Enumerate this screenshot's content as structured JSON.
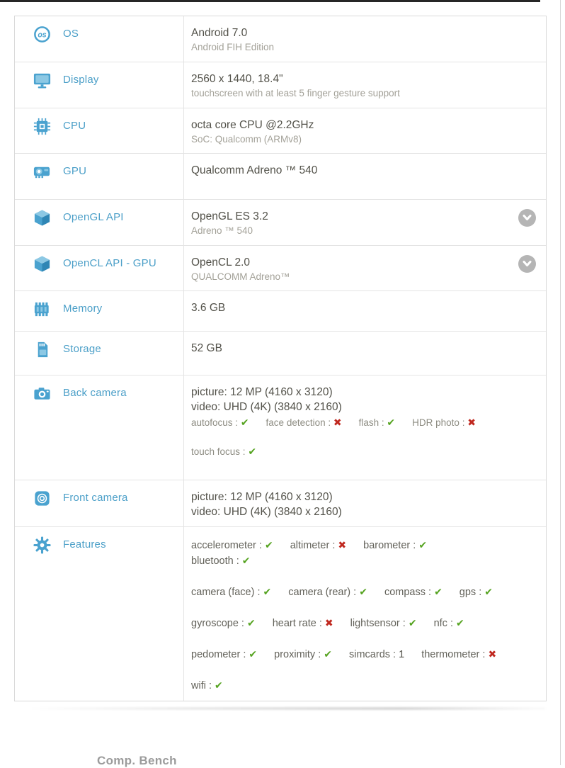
{
  "colors": {
    "label_blue": "#4B9FC8",
    "icon_blue": "#4AA2CF",
    "icon_blue_light": "#8CC8E4",
    "check_green": "#55A320",
    "cross_red": "#C0281F"
  },
  "marks": {
    "check": "✔",
    "cross": "✖"
  },
  "footer": {
    "partial_text": "Comp. Bench"
  },
  "table": {
    "rows": [
      {
        "id": "os",
        "label": "OS",
        "icon": "os-icon",
        "lines": [
          {
            "t": "Android 7.0",
            "s": "primary"
          },
          {
            "t": "Android FIH Edition",
            "s": "secondary"
          }
        ]
      },
      {
        "id": "display",
        "label": "Display",
        "icon": "display-icon",
        "lines": [
          {
            "t": "2560 x 1440, 18.4\"",
            "s": "primary"
          },
          {
            "t": "touchscreen with at least 5 finger gesture support",
            "s": "secondary"
          }
        ]
      },
      {
        "id": "cpu",
        "label": "CPU",
        "icon": "cpu-icon",
        "lines": [
          {
            "t": "octa core CPU @2.2GHz",
            "s": "primary"
          },
          {
            "t": "SoC: Qualcomm (ARMv8)",
            "s": "secondary"
          }
        ]
      },
      {
        "id": "gpu",
        "label": "GPU",
        "icon": "gpu-icon",
        "lines": [
          {
            "t": "Qualcomm Adreno ™ 540",
            "s": "primary"
          }
        ]
      },
      {
        "id": "opengl",
        "label": "OpenGL API",
        "icon": "opengl-cube-icon",
        "chevron": true,
        "lines": [
          {
            "t": "OpenGL ES 3.2",
            "s": "primary"
          },
          {
            "t": "Adreno ™ 540",
            "s": "secondary"
          }
        ]
      },
      {
        "id": "opencl",
        "label": "OpenCL API - GPU",
        "icon": "opencl-cube-icon",
        "chevron": true,
        "lines": [
          {
            "t": "OpenCL 2.0",
            "s": "primary"
          },
          {
            "t": "QUALCOMM Adreno™",
            "s": "secondary"
          }
        ]
      },
      {
        "id": "memory",
        "label": "Memory",
        "icon": "memory-icon",
        "lines": [
          {
            "t": "3.6 GB",
            "s": "primary"
          }
        ]
      },
      {
        "id": "storage",
        "label": "Storage",
        "icon": "storage-icon",
        "lines": [
          {
            "t": "52 GB",
            "s": "primary"
          }
        ]
      },
      {
        "id": "back_camera",
        "label": "Back camera",
        "icon": "back-camera-icon",
        "lines": [
          {
            "t": "picture: 12 MP (4160 x 3120)",
            "s": "primary"
          },
          {
            "t": "video: UHD (4K) (3840 x 2160)",
            "s": "primary"
          }
        ],
        "feature_style": "cam",
        "feature_lines": [
          [
            {
              "n": "autofocus",
              "v": "check"
            },
            {
              "n": "face detection",
              "v": "cross"
            },
            {
              "n": "flash",
              "v": "check"
            },
            {
              "n": "HDR photo",
              "v": "cross"
            }
          ],
          [
            {
              "n": "touch focus",
              "v": "check"
            }
          ]
        ]
      },
      {
        "id": "front_camera",
        "label": "Front camera",
        "icon": "front-camera-icon",
        "lines": [
          {
            "t": "picture: 12 MP (4160 x 3120)",
            "s": "primary"
          },
          {
            "t": "video: UHD (4K) (3840 x 2160)",
            "s": "primary"
          }
        ]
      },
      {
        "id": "features",
        "label": "Features",
        "icon": "features-gear-icon",
        "feature_style": "big",
        "feature_lines": [
          [
            {
              "n": "accelerometer",
              "v": "check"
            },
            {
              "n": "altimeter",
              "v": "cross"
            },
            {
              "n": "barometer",
              "v": "check"
            },
            {
              "n": "bluetooth",
              "v": "check"
            }
          ],
          [
            {
              "n": "camera (face)",
              "v": "check"
            },
            {
              "n": "camera (rear)",
              "v": "check"
            },
            {
              "n": "compass",
              "v": "check"
            },
            {
              "n": "gps",
              "v": "check"
            }
          ],
          [
            {
              "n": "gyroscope",
              "v": "check"
            },
            {
              "n": "heart rate",
              "v": "cross"
            },
            {
              "n": "lightsensor",
              "v": "check"
            },
            {
              "n": "nfc",
              "v": "check"
            }
          ],
          [
            {
              "n": "pedometer",
              "v": "check"
            },
            {
              "n": "proximity",
              "v": "check"
            },
            {
              "n": "simcards",
              "v": "1"
            },
            {
              "n": "thermometer",
              "v": "cross"
            }
          ],
          [
            {
              "n": "wifi",
              "v": "check"
            }
          ]
        ]
      }
    ]
  }
}
